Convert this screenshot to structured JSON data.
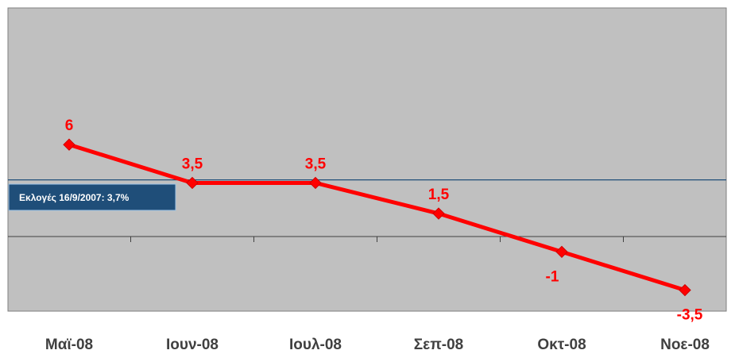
{
  "chart_data": {
    "type": "line",
    "categories": [
      "Μαϊ-08",
      "Ιουν-08",
      "Ιουλ-08",
      "Σεπ-08",
      "Οκτ-08",
      "Νοε-08"
    ],
    "values": [
      6,
      3.5,
      3.5,
      1.5,
      -1,
      -3.5
    ],
    "data_labels": [
      "6",
      "3,5",
      "3,5",
      "1,5",
      "-1",
      "-3,5"
    ],
    "ylim": [
      -5,
      15
    ],
    "reference_line": {
      "value": 3.7,
      "label": "Εκλογές 16/9/2007: 3,7%"
    },
    "grid": false,
    "legend": "none",
    "colors": {
      "series": "#ff0000",
      "plot_background": "#c0c0c0",
      "reference": "#1f4e79",
      "axis_labels": "#404040"
    }
  }
}
